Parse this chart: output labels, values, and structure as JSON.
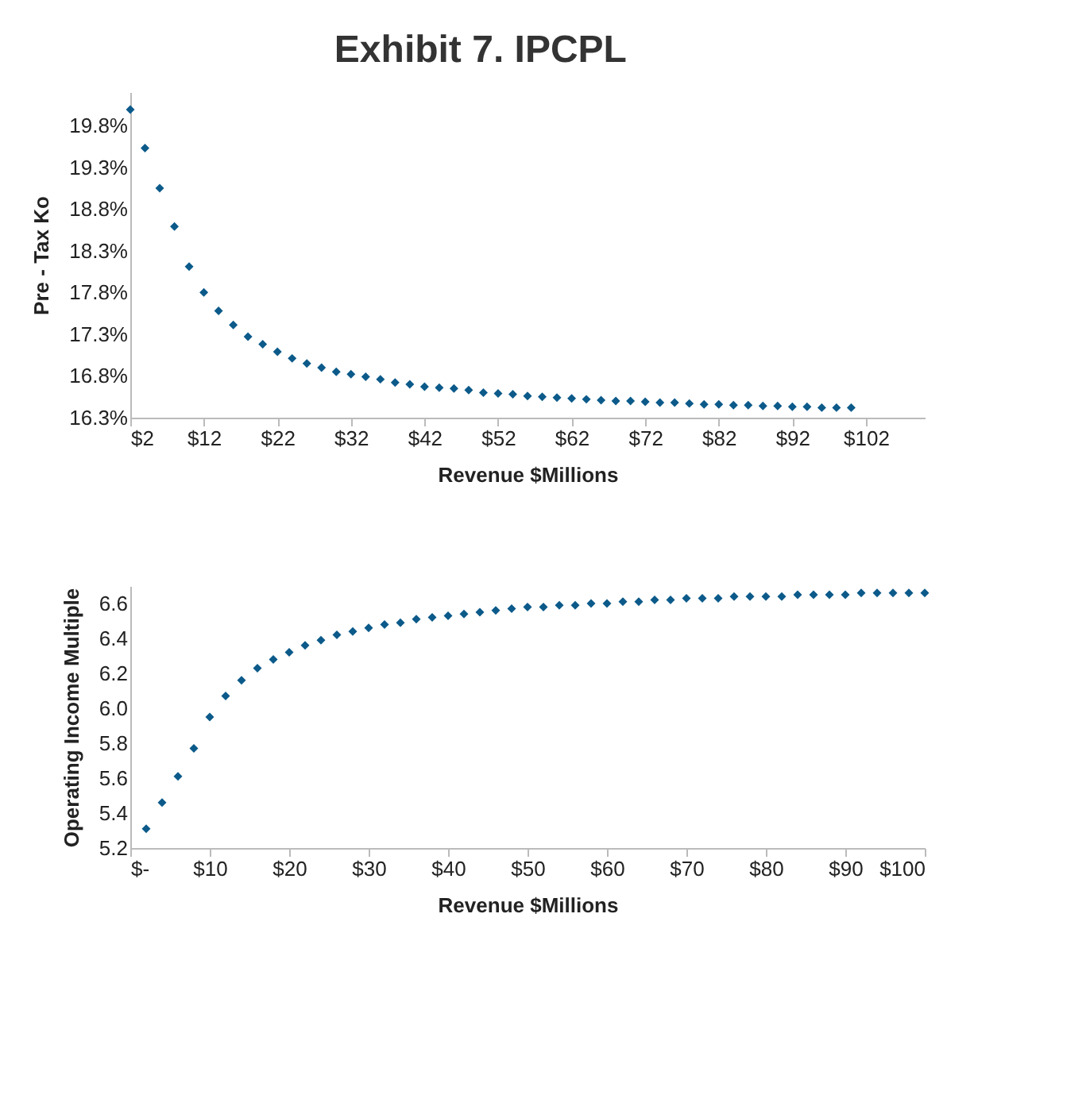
{
  "chart_data": [
    {
      "type": "scatter",
      "title": "Exhibit 7. IPCPL",
      "xlabel": "Revenue  $Millions",
      "ylabel": "Pre - Tax  Ko",
      "marker": "diamond",
      "grid": false,
      "x": [
        2,
        4,
        6,
        8,
        10,
        12,
        14,
        16,
        18,
        20,
        22,
        24,
        26,
        28,
        30,
        32,
        34,
        36,
        38,
        40,
        42,
        44,
        46,
        48,
        50,
        52,
        54,
        56,
        58,
        60,
        62,
        64,
        66,
        68,
        70,
        72,
        74,
        76,
        78,
        80,
        82,
        84,
        86,
        88,
        90,
        92,
        94,
        96,
        98,
        100
      ],
      "series": [
        {
          "color": "#0b5a8a",
          "values": [
            19.99,
            19.53,
            19.05,
            18.59,
            18.11,
            17.8,
            17.58,
            17.41,
            17.27,
            17.18,
            17.09,
            17.01,
            16.95,
            16.9,
            16.85,
            16.82,
            16.79,
            16.76,
            16.72,
            16.7,
            16.67,
            16.66,
            16.65,
            16.63,
            16.6,
            16.59,
            16.58,
            16.56,
            16.55,
            16.54,
            16.53,
            16.52,
            16.51,
            16.5,
            16.5,
            16.49,
            16.48,
            16.48,
            16.47,
            16.46,
            16.46,
            16.45,
            16.45,
            16.44,
            16.44,
            16.43,
            16.43,
            16.42,
            16.42,
            16.42
          ]
        }
      ],
      "xlim": [
        2,
        110
      ],
      "xticks": [
        {
          "value": 2,
          "label": "$2"
        },
        {
          "value": 12,
          "label": "$12"
        },
        {
          "value": 22,
          "label": "$22"
        },
        {
          "value": 32,
          "label": "$32"
        },
        {
          "value": 42,
          "label": "$42"
        },
        {
          "value": 52,
          "label": "$52"
        },
        {
          "value": 62,
          "label": "$62"
        },
        {
          "value": 72,
          "label": "$72"
        },
        {
          "value": 82,
          "label": "$82"
        },
        {
          "value": 92,
          "label": "$92"
        },
        {
          "value": 102,
          "label": "$102"
        }
      ],
      "ylim": [
        16.3,
        20.2
      ],
      "yticks": [
        {
          "value": 16.3,
          "label": "16.3%"
        },
        {
          "value": 16.8,
          "label": "16.8%"
        },
        {
          "value": 17.3,
          "label": "17.3%"
        },
        {
          "value": 17.8,
          "label": "17.8%"
        },
        {
          "value": 18.3,
          "label": "18.3%"
        },
        {
          "value": 18.8,
          "label": "18.8%"
        },
        {
          "value": 19.3,
          "label": "19.3%"
        },
        {
          "value": 19.8,
          "label": "19.8%"
        }
      ]
    },
    {
      "type": "scatter",
      "xlabel": "Revenue  $Millions",
      "ylabel": "Operating  Income  Multiple",
      "marker": "diamond",
      "grid": false,
      "x": [
        2,
        4,
        6,
        8,
        10,
        12,
        14,
        16,
        18,
        20,
        22,
        24,
        26,
        28,
        30,
        32,
        34,
        36,
        38,
        40,
        42,
        44,
        46,
        48,
        50,
        52,
        54,
        56,
        58,
        60,
        62,
        64,
        66,
        68,
        70,
        72,
        74,
        76,
        78,
        80,
        82,
        84,
        86,
        88,
        90,
        92,
        94,
        96,
        98,
        100
      ],
      "series": [
        {
          "color": "#0b5a8a",
          "values": [
            5.31,
            5.46,
            5.61,
            5.77,
            5.95,
            6.07,
            6.16,
            6.23,
            6.28,
            6.32,
            6.36,
            6.39,
            6.42,
            6.44,
            6.46,
            6.48,
            6.49,
            6.51,
            6.52,
            6.53,
            6.54,
            6.55,
            6.56,
            6.57,
            6.58,
            6.58,
            6.59,
            6.59,
            6.6,
            6.6,
            6.61,
            6.61,
            6.62,
            6.62,
            6.63,
            6.63,
            6.63,
            6.64,
            6.64,
            6.64,
            6.64,
            6.65,
            6.65,
            6.65,
            6.65,
            6.66,
            6.66,
            6.66,
            6.66,
            6.66
          ]
        }
      ],
      "xlim": [
        0,
        100
      ],
      "xticks": [
        {
          "value": 0,
          "label": "$-"
        },
        {
          "value": 10,
          "label": "$10"
        },
        {
          "value": 20,
          "label": "$20"
        },
        {
          "value": 30,
          "label": "$30"
        },
        {
          "value": 40,
          "label": "$40"
        },
        {
          "value": 50,
          "label": "$50"
        },
        {
          "value": 60,
          "label": "$60"
        },
        {
          "value": 70,
          "label": "$70"
        },
        {
          "value": 80,
          "label": "$80"
        },
        {
          "value": 90,
          "label": "$90"
        },
        {
          "value": 100,
          "label": "$100"
        }
      ],
      "ylim": [
        5.2,
        6.7
      ],
      "yticks": [
        {
          "value": 5.2,
          "label": "5.2"
        },
        {
          "value": 5.4,
          "label": "5.4"
        },
        {
          "value": 5.6,
          "label": "5.6"
        },
        {
          "value": 5.8,
          "label": "5.8"
        },
        {
          "value": 6.0,
          "label": "6.0"
        },
        {
          "value": 6.2,
          "label": "6.2"
        },
        {
          "value": 6.4,
          "label": "6.4"
        },
        {
          "value": 6.6,
          "label": "6.6"
        }
      ]
    }
  ]
}
